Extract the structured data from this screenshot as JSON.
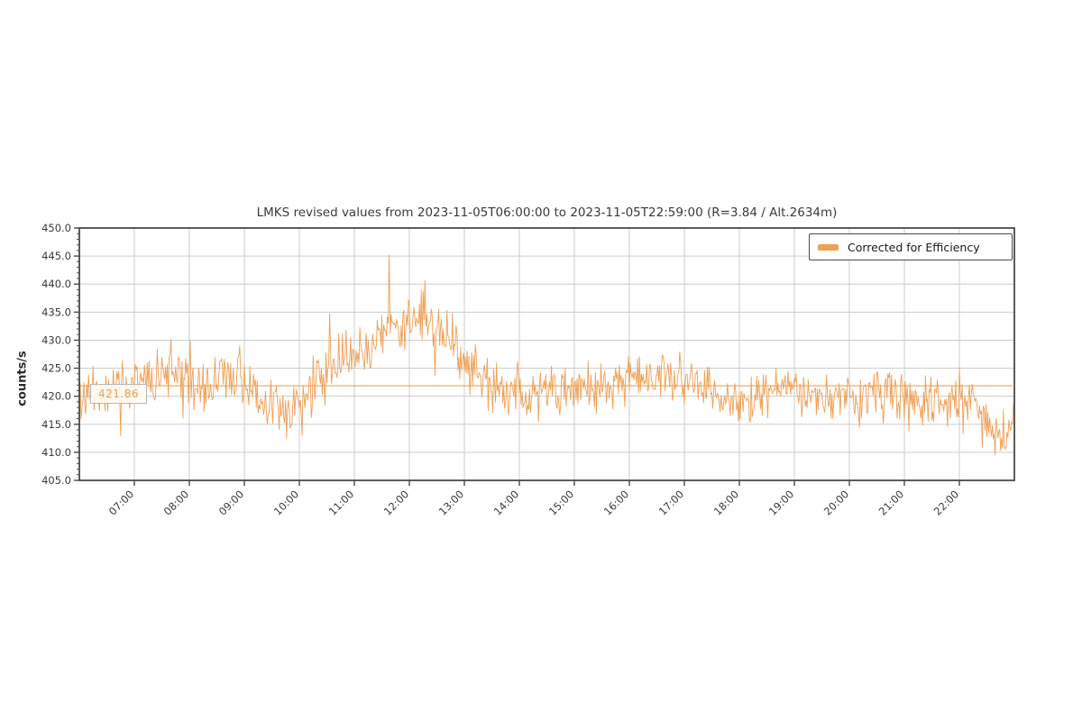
{
  "page": {
    "background": "#ffffff"
  },
  "chart_data": {
    "type": "line",
    "title": "LMKS revised values from 2023-11-05T06:00:00 to 2023-11-05T22:59:00 (R=3.84 / Alt.2634m)",
    "xlabel": "",
    "ylabel": "counts/s",
    "grid": true,
    "legend": {
      "position": "upper right",
      "entries": [
        {
          "label": "Corrected for Efficiency",
          "color": "#f0a055"
        }
      ]
    },
    "x_axis": {
      "start": "06:00",
      "end": "23:00",
      "xlim_hours": [
        6.0,
        23.0
      ],
      "tick_hours": [
        7,
        8,
        9,
        10,
        11,
        12,
        13,
        14,
        15,
        16,
        17,
        18,
        19,
        20,
        21,
        22
      ],
      "tick_labels": [
        "07:00",
        "08:00",
        "09:00",
        "10:00",
        "11:00",
        "12:00",
        "13:00",
        "14:00",
        "15:00",
        "16:00",
        "17:00",
        "18:00",
        "19:00",
        "20:00",
        "21:00",
        "22:00"
      ]
    },
    "y_axis": {
      "ylim": [
        405.0,
        450.0
      ],
      "tick_values": [
        405,
        410,
        415,
        420,
        425,
        430,
        435,
        440,
        445,
        450
      ],
      "tick_labels": [
        "405.0",
        "410.0",
        "415.0",
        "420.0",
        "425.0",
        "430.0",
        "435.0",
        "440.0",
        "445.0",
        "450.0"
      ],
      "minor_step": 1.0
    },
    "mean_line": {
      "value": 421.86,
      "label": "421.86",
      "color": "#f0a055",
      "text_color": "#ec9a52"
    },
    "series": [
      {
        "name": "Corrected for Efficiency",
        "color": "#f0a055",
        "start_time": "2023-11-05T06:00:00",
        "end_time": "2023-11-05T22:59:00",
        "sample_minutes": 1,
        "mean": 421.86,
        "noise_std": 2.25,
        "spike_probability": 0.012,
        "spike_scale": 1.7,
        "seed": 11,
        "trend_keypoints_hour_value": [
          [
            6.0,
            421.0
          ],
          [
            6.25,
            420.0
          ],
          [
            6.55,
            422.0
          ],
          [
            6.9,
            421.0
          ],
          [
            7.2,
            422.5
          ],
          [
            7.5,
            423.5
          ],
          [
            7.75,
            424.5
          ],
          [
            8.0,
            423.0
          ],
          [
            8.3,
            421.5
          ],
          [
            8.6,
            423.0
          ],
          [
            8.9,
            423.5
          ],
          [
            9.2,
            421.0
          ],
          [
            9.45,
            419.0
          ],
          [
            9.7,
            417.0
          ],
          [
            9.85,
            416.0
          ],
          [
            10.0,
            419.5
          ],
          [
            10.3,
            422.5
          ],
          [
            10.6,
            425.0
          ],
          [
            10.9,
            426.5
          ],
          [
            11.2,
            429.0
          ],
          [
            11.5,
            431.5
          ],
          [
            11.75,
            433.5
          ],
          [
            12.0,
            433.0
          ],
          [
            12.2,
            434.0
          ],
          [
            12.45,
            431.5
          ],
          [
            12.7,
            430.0
          ],
          [
            12.9,
            427.5
          ],
          [
            13.1,
            425.0
          ],
          [
            13.4,
            422.0
          ],
          [
            13.7,
            421.0
          ],
          [
            14.0,
            420.5
          ],
          [
            14.4,
            421.5
          ],
          [
            14.8,
            420.5
          ],
          [
            15.2,
            421.5
          ],
          [
            15.6,
            422.0
          ],
          [
            16.0,
            423.0
          ],
          [
            16.4,
            423.5
          ],
          [
            16.8,
            423.5
          ],
          [
            17.1,
            423.0
          ],
          [
            17.5,
            421.0
          ],
          [
            17.9,
            419.5
          ],
          [
            18.3,
            420.5
          ],
          [
            18.7,
            421.5
          ],
          [
            19.0,
            422.0
          ],
          [
            19.3,
            420.5
          ],
          [
            19.7,
            419.0
          ],
          [
            20.0,
            419.5
          ],
          [
            20.4,
            421.0
          ],
          [
            20.8,
            420.0
          ],
          [
            21.1,
            419.5
          ],
          [
            21.5,
            418.5
          ],
          [
            21.9,
            419.5
          ],
          [
            22.2,
            418.5
          ],
          [
            22.45,
            416.5
          ],
          [
            22.65,
            414.0
          ],
          [
            22.85,
            412.5
          ],
          [
            22.95,
            415.5
          ],
          [
            22.983,
            418.0
          ]
        ]
      }
    ],
    "style": {
      "grid_color": "#cccccc",
      "spine_color": "#4a4a4a",
      "tick_label_color": "#3a3a3a"
    }
  }
}
